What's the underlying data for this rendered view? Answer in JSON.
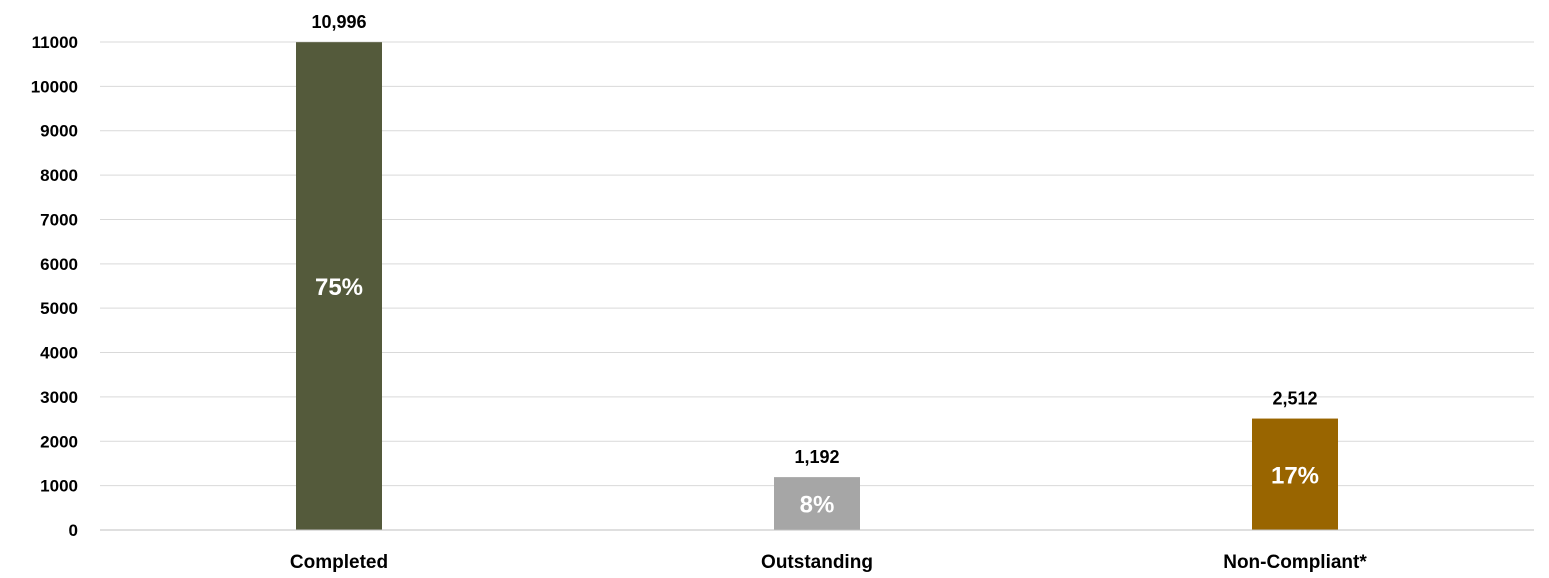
{
  "chart_data": {
    "type": "bar",
    "categories": [
      "Completed",
      "Outstanding",
      "Non-Compliant*"
    ],
    "values": [
      10996,
      1192,
      2512
    ],
    "value_labels": [
      "10,996",
      "1,192",
      "2,512"
    ],
    "percent_labels": [
      "75%",
      "8%",
      "17%"
    ],
    "colors": [
      "#545a3b",
      "#a6a6a6",
      "#996500"
    ],
    "ylim": [
      0,
      11000
    ],
    "yticks": [
      "0",
      "1000",
      "2000",
      "3000",
      "4000",
      "5000",
      "6000",
      "7000",
      "8000",
      "9000",
      "10000",
      "11000"
    ],
    "ytick_values": [
      0,
      1000,
      2000,
      3000,
      4000,
      5000,
      6000,
      7000,
      8000,
      9000,
      10000,
      11000
    ],
    "grid": true,
    "legend": "none"
  }
}
